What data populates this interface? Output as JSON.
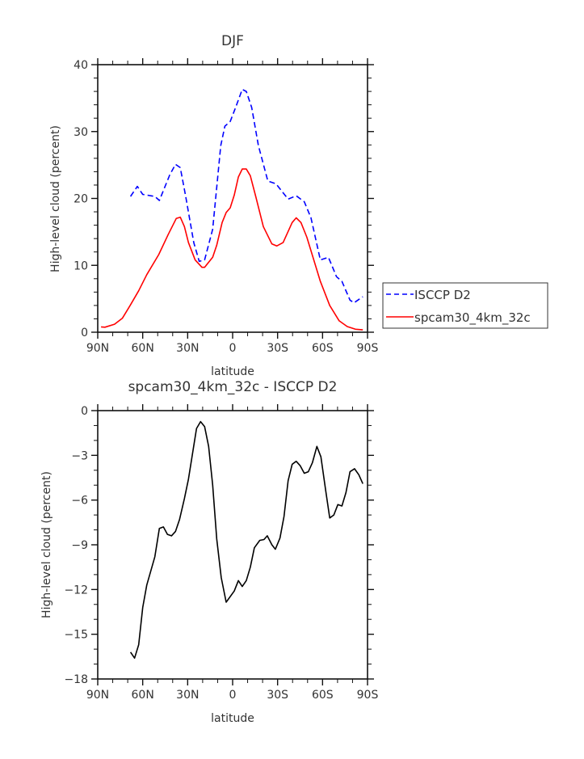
{
  "chart_data": [
    {
      "type": "line",
      "title": "DJF",
      "xlabel": "latitude",
      "ylabel": "High-level cloud (percent)",
      "xlim": [
        90,
        -90
      ],
      "ylim": [
        0,
        40
      ],
      "xticks": [
        90,
        60,
        30,
        0,
        -30,
        -60,
        -90
      ],
      "xtick_labels": [
        "90N",
        "60N",
        "30N",
        "0",
        "30S",
        "60S",
        "90S"
      ],
      "yticks": [
        0,
        10,
        20,
        30,
        40
      ],
      "ytick_labels": [
        "0",
        "10",
        "20",
        "30",
        "40"
      ],
      "grid": false,
      "legend": {
        "placement": "right",
        "entries": [
          "ISCCP D2",
          "spcam30_4km_32c"
        ]
      },
      "series": [
        {
          "name": "ISCCP D2",
          "color": "#0000ff",
          "style": "dashed",
          "x": [
            68.1,
            63.6,
            60,
            51.9,
            48.9,
            42,
            38.1,
            34.9,
            31.3,
            25.9,
            22.3,
            18.7,
            13.3,
            7.9,
            5.2,
            1.6,
            -2,
            -6.4,
            -9.1,
            -12.7,
            -17.2,
            -23.5,
            -28.9,
            -37,
            -42.4,
            -47.8,
            -52.3,
            -58.5,
            -63.9,
            -69.3,
            -72.9,
            -78.3,
            -81,
            -86.9
          ],
          "y": [
            20.3,
            21.8,
            20.6,
            20.3,
            19.7,
            23.5,
            25.1,
            24.6,
            20.3,
            13.4,
            10.6,
            10.8,
            15.4,
            27.9,
            30.8,
            31.5,
            33.6,
            36.3,
            36.0,
            33.6,
            27.9,
            22.6,
            22.2,
            19.9,
            20.4,
            19.5,
            17.1,
            10.8,
            11.2,
            8.3,
            7.6,
            4.8,
            4.4,
            5.3
          ]
        },
        {
          "name": "spcam30_4km_32c",
          "color": "#ff0000",
          "style": "solid",
          "x": [
            87.8,
            85.2,
            78.8,
            73.5,
            68.1,
            62.7,
            57.3,
            49.3,
            43,
            37.6,
            34.9,
            32.2,
            29.5,
            25,
            20.5,
            18.7,
            13.3,
            10.6,
            7,
            4.3,
            1.6,
            -1.1,
            -3.8,
            -6.4,
            -9.1,
            -11.8,
            -15.4,
            -20.5,
            -26.2,
            -29.4,
            -33.7,
            -39.7,
            -42.4,
            -45.6,
            -49.5,
            -58.5,
            -64.8,
            -71.1,
            -76.5,
            -81.9,
            -86.9
          ],
          "y": [
            0.8,
            0.75,
            1.2,
            2.1,
            4.1,
            6.2,
            8.6,
            11.6,
            14.6,
            17.0,
            17.2,
            15.8,
            13.4,
            10.8,
            9.7,
            9.7,
            11.2,
            13.0,
            16.4,
            17.9,
            18.6,
            20.5,
            23.2,
            24.4,
            24.4,
            23.4,
            20.3,
            15.8,
            13.2,
            12.9,
            13.4,
            16.4,
            17.1,
            16.4,
            14.2,
            7.6,
            4.0,
            1.7,
            0.85,
            0.45,
            0.35
          ]
        }
      ]
    },
    {
      "type": "line",
      "title": "spcam30_4km_32c - ISCCP D2",
      "xlabel": "latitude",
      "ylabel": "High-level cloud (percent)",
      "xlim": [
        90,
        -90
      ],
      "ylim": [
        -18,
        0
      ],
      "xticks": [
        90,
        60,
        30,
        0,
        -30,
        -60,
        -90
      ],
      "xtick_labels": [
        "90N",
        "60N",
        "30N",
        "0",
        "30S",
        "60S",
        "90S"
      ],
      "yticks": [
        0,
        -3,
        -6,
        -9,
        -12,
        -15,
        -18
      ],
      "ytick_labels": [
        "0",
        "−3",
        "−6",
        "−9",
        "−12",
        "−15",
        "−18"
      ],
      "grid": false,
      "series": [
        {
          "name": "spcam30_4km_32c - ISCCP D2",
          "color": "#000000",
          "style": "solid",
          "x": [
            68.1,
            65.4,
            62.7,
            60,
            57.3,
            51.9,
            48.9,
            46.2,
            43.5,
            40.8,
            38.1,
            35.4,
            32.2,
            29.5,
            24.1,
            21.4,
            18.7,
            16,
            13.3,
            10.6,
            7.6,
            4.3,
            -1.1,
            -3.8,
            -6.4,
            -9.1,
            -11.8,
            -14.5,
            -18.1,
            -20.9,
            -23.1,
            -26.2,
            -28.5,
            -31.6,
            -34.3,
            -37,
            -39.7,
            -42.4,
            -45.1,
            -47.8,
            -50.5,
            -53.2,
            -56.2,
            -58.9,
            -62.1,
            -64.8,
            -67.5,
            -70.2,
            -72.9,
            -75.6,
            -78.3,
            -81.3,
            -84.2,
            -86.9
          ],
          "y": [
            -16.2,
            -16.6,
            -15.7,
            -13.2,
            -11.7,
            -9.8,
            -7.9,
            -7.8,
            -8.3,
            -8.4,
            -8.1,
            -7.3,
            -5.9,
            -4.6,
            -1.2,
            -0.74,
            -1.07,
            -2.4,
            -5.0,
            -8.6,
            -11.2,
            -12.85,
            -12.1,
            -11.4,
            -11.8,
            -11.4,
            -10.5,
            -9.2,
            -8.7,
            -8.65,
            -8.4,
            -9.0,
            -9.3,
            -8.55,
            -7.1,
            -4.7,
            -3.6,
            -3.4,
            -3.7,
            -4.2,
            -4.1,
            -3.5,
            -2.4,
            -3.1,
            -5.35,
            -7.2,
            -7.0,
            -6.3,
            -6.4,
            -5.5,
            -4.1,
            -3.9,
            -4.3,
            -4.9
          ]
        }
      ]
    }
  ]
}
